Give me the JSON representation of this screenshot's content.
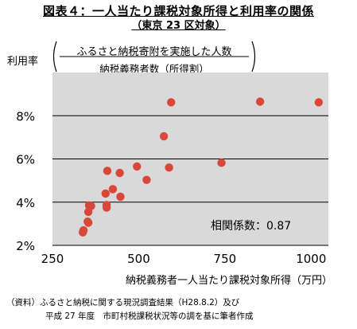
{
  "header": {
    "title": "図表４：一人当たり課税対象所得と利用率の関係",
    "subtitle": "（東京 23 区対象）"
  },
  "y_axis_label": {
    "name": "利用率",
    "numerator": "ふるさと納税寄附を実施した人数",
    "denominator": "納税義務者数（所得割）"
  },
  "notes": {
    "line1": "（資料）ふるさと納税に関する現況調査結果（H28.8.2）及び",
    "line2": "平成 27 年度　市町村税課税状況等の調を基に筆者作成"
  },
  "colors": {
    "plot_bg": "#d9d9d9",
    "marker": "#d9473a",
    "grid": "#000000"
  },
  "chart_data": {
    "type": "scatter",
    "title": "図表４：一人当たり課税対象所得と利用率の関係",
    "subtitle": "（東京 23 区対象）",
    "xlabel": "納税義務者一人当たり課税対象所得（万円）",
    "ylabel": "利用率",
    "xlim": [
      250,
      1050
    ],
    "ylim": [
      2,
      10
    ],
    "x_ticks": [
      250,
      500,
      750,
      1000
    ],
    "y_ticks": [
      2,
      4,
      6,
      8
    ],
    "x_tick_labels": [
      "250",
      "500",
      "750",
      "1000"
    ],
    "y_tick_labels": [
      "2%",
      "4%",
      "6%",
      "8%"
    ],
    "y_unit": "%",
    "grid": "horizontal",
    "annotation": "相関係数：0.87",
    "points": [
      {
        "x": 338,
        "y": 2.6
      },
      {
        "x": 340,
        "y": 2.7
      },
      {
        "x": 352,
        "y": 3.1
      },
      {
        "x": 354,
        "y": 3.05
      },
      {
        "x": 354,
        "y": 3.55
      },
      {
        "x": 356,
        "y": 3.85
      },
      {
        "x": 362,
        "y": 3.82
      },
      {
        "x": 404,
        "y": 4.4
      },
      {
        "x": 407,
        "y": 3.75
      },
      {
        "x": 407,
        "y": 3.87
      },
      {
        "x": 409,
        "y": 5.45
      },
      {
        "x": 425,
        "y": 4.6
      },
      {
        "x": 445,
        "y": 5.35
      },
      {
        "x": 447,
        "y": 4.25
      },
      {
        "x": 495,
        "y": 5.65
      },
      {
        "x": 523,
        "y": 5.03
      },
      {
        "x": 573,
        "y": 7.05
      },
      {
        "x": 588,
        "y": 5.6
      },
      {
        "x": 594,
        "y": 8.62
      },
      {
        "x": 740,
        "y": 5.82
      },
      {
        "x": 852,
        "y": 8.65
      },
      {
        "x": 1022,
        "y": 8.62
      }
    ]
  }
}
